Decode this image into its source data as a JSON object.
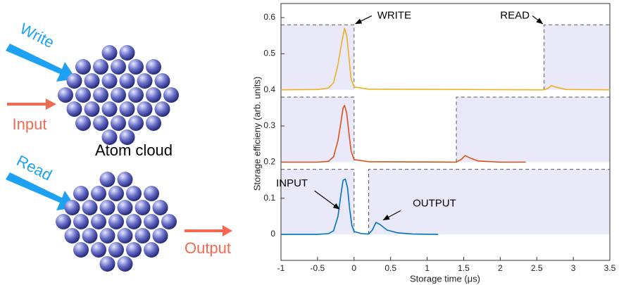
{
  "diagram": {
    "write": "Write",
    "input": "Input",
    "cloud": "Atom cloud",
    "read": "Read",
    "output": "Output"
  },
  "chart_data": {
    "type": "line",
    "xlabel": "Storage time (μs)",
    "ylabel": "Storage efficieny (arb. units)",
    "xlim": [
      -1,
      3.5
    ],
    "ylim": [
      -0.072,
      0.639
    ],
    "xticks": [
      -1,
      -0.5,
      0,
      0.5,
      1,
      1.5,
      2,
      2.5,
      3,
      3.5
    ],
    "yticks": [
      0,
      0.1,
      0.2,
      0.3,
      0.4,
      0.5,
      0.6
    ],
    "series": [
      {
        "color": "#edb120",
        "x": [
          -1,
          -0.5,
          -0.35,
          -0.28,
          -0.22,
          -0.17,
          -0.13,
          -0.1,
          -0.07,
          -0.04,
          0,
          0.2,
          2.6,
          2.66,
          2.7,
          2.75,
          2.9,
          3.5
        ],
        "values": [
          0.4,
          0.401,
          0.405,
          0.42,
          0.47,
          0.53,
          0.57,
          0.55,
          0.49,
          0.43,
          0.408,
          0.402,
          0.4,
          0.405,
          0.412,
          0.408,
          0.401,
          0.4
        ]
      },
      {
        "color": "#d95319",
        "x": [
          -1,
          -0.5,
          -0.35,
          -0.28,
          -0.22,
          -0.18,
          -0.15,
          -0.13,
          -0.1,
          -0.07,
          -0.04,
          0,
          0.2,
          1.4,
          1.47,
          1.52,
          1.58,
          1.7,
          2,
          2.35
        ],
        "values": [
          0.2,
          0.2,
          0.202,
          0.215,
          0.26,
          0.31,
          0.35,
          0.357,
          0.335,
          0.28,
          0.23,
          0.207,
          0.201,
          0.2,
          0.208,
          0.218,
          0.212,
          0.203,
          0.2,
          0.2
        ]
      },
      {
        "color": "#0072bd",
        "x": [
          -1,
          -0.5,
          -0.35,
          -0.28,
          -0.22,
          -0.18,
          -0.15,
          -0.12,
          -0.09,
          -0.06,
          -0.03,
          0,
          0.1,
          0.2,
          0.25,
          0.3,
          0.35,
          0.45,
          0.6,
          0.8,
          1.15
        ],
        "values": [
          0,
          0,
          0.002,
          0.01,
          0.05,
          0.11,
          0.15,
          0.153,
          0.13,
          0.07,
          0.025,
          0.008,
          0.002,
          0.001,
          0.012,
          0.033,
          0.028,
          0.012,
          0.004,
          0.001,
          0
        ]
      }
    ],
    "control_regions": [
      {
        "x": [
          -1,
          0
        ],
        "y": [
          0.4,
          0.58
        ]
      },
      {
        "x": [
          2.6,
          3.5
        ],
        "y": [
          0.4,
          0.58
        ]
      },
      {
        "x": [
          -1,
          0
        ],
        "y": [
          0.2,
          0.38
        ]
      },
      {
        "x": [
          1.4,
          3.5
        ],
        "y": [
          0.2,
          0.38
        ]
      },
      {
        "x": [
          -1,
          0
        ],
        "y": [
          0,
          0.18
        ]
      },
      {
        "x": [
          0.2,
          3.5
        ],
        "y": [
          0,
          0.18
        ]
      }
    ],
    "annotations": [
      "WRITE",
      "READ",
      "INPUT",
      "OUTPUT"
    ]
  }
}
